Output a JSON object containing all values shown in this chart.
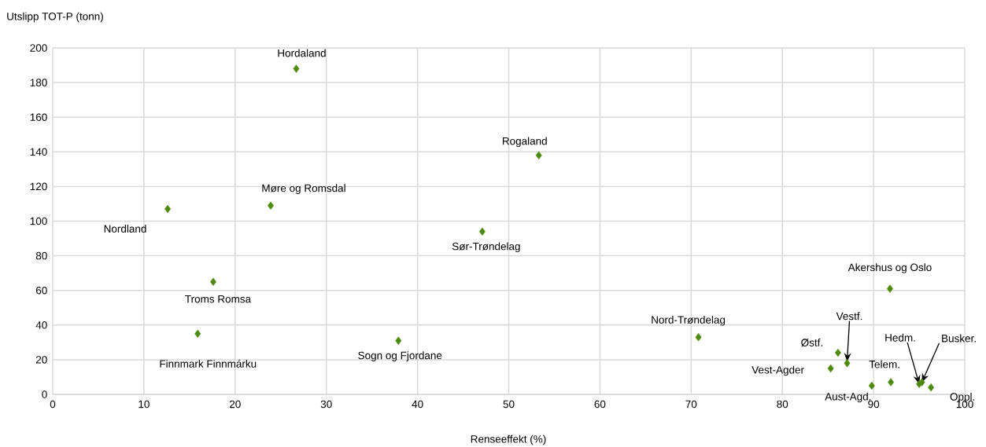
{
  "chart_data": {
    "type": "scatter",
    "xlabel": "Renseeffekt (%)",
    "ylabel": "Utslipp TOT-P (tonn)",
    "x": [
      26.7,
      53.3,
      23.9,
      12.6,
      47.1,
      91.8,
      17.6,
      15.9,
      70.8,
      37.9,
      86.1,
      87.1,
      85.3,
      91.9,
      95.0,
      95.3,
      89.8,
      96.3
    ],
    "values": [
      188,
      138,
      109,
      107,
      94,
      61,
      65,
      35,
      33,
      31,
      24,
      18,
      15,
      7,
      6,
      7,
      5,
      4
    ],
    "color": "#4e8a0f",
    "marker": "diamond",
    "grid": true,
    "xlim": [
      0,
      100
    ],
    "xticks": [
      0,
      10,
      20,
      30,
      40,
      50,
      60,
      70,
      80,
      90,
      100
    ],
    "ylim": [
      0,
      200
    ],
    "yticks": [
      0,
      20,
      40,
      60,
      80,
      100,
      120,
      140,
      160,
      180,
      200
    ],
    "annotations": [
      {
        "text": "Hordaland",
        "x": 26.7,
        "y": 188
      },
      {
        "text": "Rogaland",
        "x": 53.3,
        "y": 138
      },
      {
        "text": "Møre og Romsdal",
        "x": 23.9,
        "y": 109
      },
      {
        "text": "Nordland",
        "x": 12.6,
        "y": 107
      },
      {
        "text": "Sør-Trøndelag",
        "x": 47.1,
        "y": 94
      },
      {
        "text": "Akershus og Oslo",
        "x": 91.8,
        "y": 61
      },
      {
        "text": "Troms Romsa",
        "x": 17.6,
        "y": 65
      },
      {
        "text": "Finnmark Finnmárku",
        "x": 15.9,
        "y": 35
      },
      {
        "text": "Nord-Trøndelag",
        "x": 70.8,
        "y": 33
      },
      {
        "text": "Sogn og Fjordane",
        "x": 37.9,
        "y": 31
      },
      {
        "text": "Østf.",
        "x": 86.1,
        "y": 24
      },
      {
        "text": "Vestf.",
        "x": 87.1,
        "y": 18
      },
      {
        "text": "Vest-Agder",
        "x": 85.3,
        "y": 15
      },
      {
        "text": "Telem.",
        "x": 91.9,
        "y": 7
      },
      {
        "text": "Hedm.",
        "x": 95.0,
        "y": 6
      },
      {
        "text": "Busker.",
        "x": 95.3,
        "y": 7
      },
      {
        "text": "Aust-Agd.",
        "x": 89.8,
        "y": 5
      },
      {
        "text": "Oppl.",
        "x": 96.3,
        "y": 4
      }
    ]
  }
}
